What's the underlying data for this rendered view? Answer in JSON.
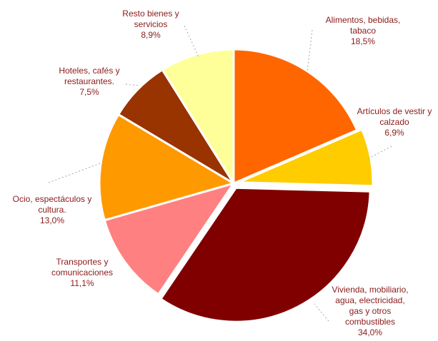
{
  "chart_data": {
    "type": "pie",
    "title": "",
    "unit": "%",
    "start_angle_deg": 0,
    "direction": "clockwise",
    "slices": [
      {
        "label_lines": [
          "Alimentos, bebidas,",
          "tabaco"
        ],
        "value_text": "18,5%",
        "value": 18.5,
        "color": "#ff6600",
        "exploded": false
      },
      {
        "label_lines": [
          "Artículos de vestir y",
          "calzado"
        ],
        "value_text": "6,9%",
        "value": 6.9,
        "color": "#ffcc00",
        "exploded": true
      },
      {
        "label_lines": [
          "Vivienda, mobiliario,",
          "agua, electricidad,",
          "gas y otros",
          "combustibles"
        ],
        "value_text": "34,0%",
        "value": 34.0,
        "color": "#800000",
        "exploded": true
      },
      {
        "label_lines": [
          "Transportes y",
          "comunicaciones"
        ],
        "value_text": "11,1%",
        "value": 11.1,
        "color": "#ff8080",
        "exploded": false
      },
      {
        "label_lines": [
          "Ocio, espectáculos y",
          "cultura."
        ],
        "value_text": "13,0%",
        "value": 13.0,
        "color": "#ff9900",
        "exploded": false
      },
      {
        "label_lines": [
          "Hoteles, cafés y",
          "restaurantes."
        ],
        "value_text": "7,5%",
        "value": 7.5,
        "color": "#993300",
        "exploded": false
      },
      {
        "label_lines": [
          "Resto bienes y",
          "servicios"
        ],
        "value_text": "8,9%",
        "value": 8.9,
        "color": "#ffff99",
        "exploded": false
      }
    ],
    "legend": "none",
    "label_color": "#8b1a1a"
  }
}
